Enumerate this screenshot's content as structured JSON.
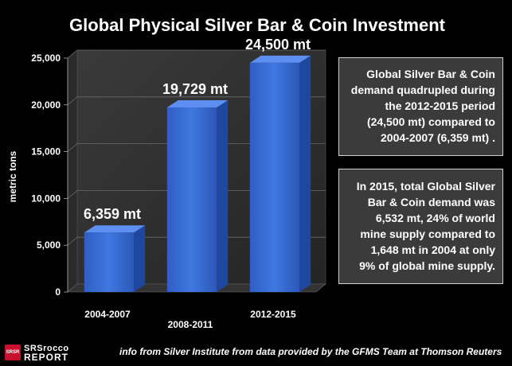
{
  "chart_data": {
    "type": "bar",
    "title": "Global Physical Silver Bar & Coin Investment",
    "xlabel": "",
    "ylabel": "metric tons",
    "ylim": [
      0,
      25000
    ],
    "yticks": [
      0,
      5000,
      10000,
      15000,
      20000,
      25000
    ],
    "ytick_labels": [
      "0",
      "5,000",
      "10,000",
      "15,000",
      "20,000",
      "25,000"
    ],
    "categories": [
      "2004-2007",
      "2008-2011",
      "2012-2015"
    ],
    "values": [
      6359,
      19729,
      24500
    ],
    "data_labels": [
      "6,359 mt",
      "19,729 mt",
      "24,500 mt"
    ],
    "grid": true,
    "bar_color": "#3a6fd8"
  },
  "annotations": {
    "box1_lines": [
      "Global Silver Bar & Coin",
      "demand quadrupled during",
      "the 2012-2015 period",
      "(24,500 mt) compared to",
      "2004-2007 (6,359 mt) ."
    ],
    "box2_lines": [
      "In 2015, total Global Silver",
      "Bar & Coin demand was",
      "6,532 mt, 24% of world",
      "mine supply compared to",
      "1,648 mt in 2004 at only",
      "9% of global mine supply."
    ]
  },
  "footer": {
    "note": "info from Silver Institute from data provided by the GFMS Team at Thomson Reuters",
    "logo_badge": "SRSR",
    "logo_word1": "SRSrocco",
    "logo_word2": "REPORT"
  }
}
